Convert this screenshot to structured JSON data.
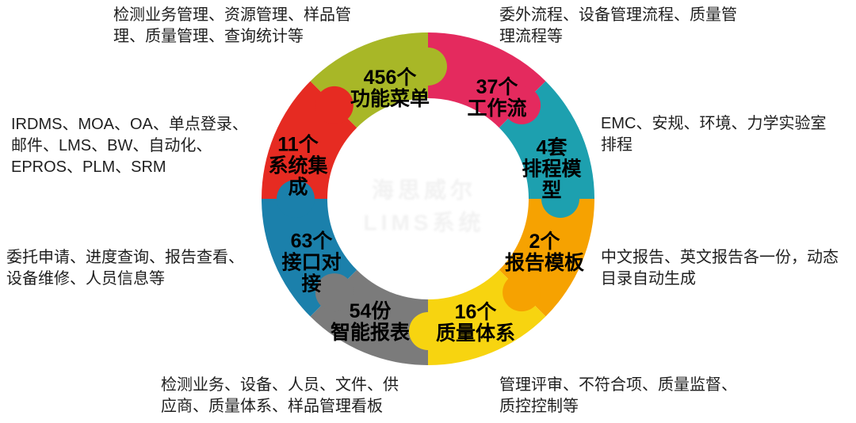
{
  "diagram": {
    "center_watermark": {
      "line1": "海思威尔",
      "line2": "LIMS系统"
    },
    "segments": [
      {
        "id": "function-menu",
        "label": "456个\n功能菜单",
        "color": "#a8b727",
        "annotation": "检测业务管理、资源管理、样品管\n理、质量管理、查询统计等"
      },
      {
        "id": "workflow",
        "label": "37个\n工作流",
        "color": "#e42a5e",
        "annotation": "委外流程、设备管理流程、质量管\n理流程等"
      },
      {
        "id": "scheduling-model",
        "label": "4套\n排程模\n型",
        "color": "#1da0af",
        "annotation": "EMC、安规、环境、力学实验室\n排程"
      },
      {
        "id": "report-template",
        "label": "2个\n报告模板",
        "color": "#f6a201",
        "annotation": "中文报告、英文报告各一份，动态\n目录自动生成"
      },
      {
        "id": "quality-system",
        "label": "16个\n质量体系",
        "color": "#f7d410",
        "annotation": "管理评审、不符合项、质量监督、\n质控控制等"
      },
      {
        "id": "smart-report",
        "label": "54份\n智能报表",
        "color": "#7b7b7b",
        "annotation": "检测业务、设备、人员、文件、供\n应商、质量体系、样品管理看板"
      },
      {
        "id": "interface-docking",
        "label": "63个\n接口对\n接",
        "color": "#1b80ab",
        "annotation": "委托申请、进度查询、报告查看、\n设备维修、人员信息等"
      },
      {
        "id": "system-integration",
        "label": "11个\n系统集\n成",
        "color": "#e62b22",
        "annotation": "IRDMS、MOA、OA、单点登录、\n邮件、LMS、BW、自动化、\nEPROS、PLM、SRM"
      }
    ]
  },
  "chart_data": {
    "type": "pie",
    "title": "",
    "categories": [
      "功能菜单",
      "工作流",
      "排程模型",
      "报告模板",
      "质量体系",
      "智能报表",
      "接口对接",
      "系统集成"
    ],
    "values": [
      456,
      37,
      4,
      2,
      16,
      54,
      63,
      11
    ],
    "units": [
      "个",
      "个",
      "套",
      "个",
      "个",
      "份",
      "个",
      "个"
    ],
    "colors": [
      "#a8b727",
      "#e42a5e",
      "#1da0af",
      "#f6a201",
      "#f7d410",
      "#7b7b7b",
      "#1b80ab",
      "#e62b22"
    ],
    "legend_position": "none",
    "note": "8 equal 45-degree puzzle-piece ring segments; numbers are labels, not slice angles"
  }
}
